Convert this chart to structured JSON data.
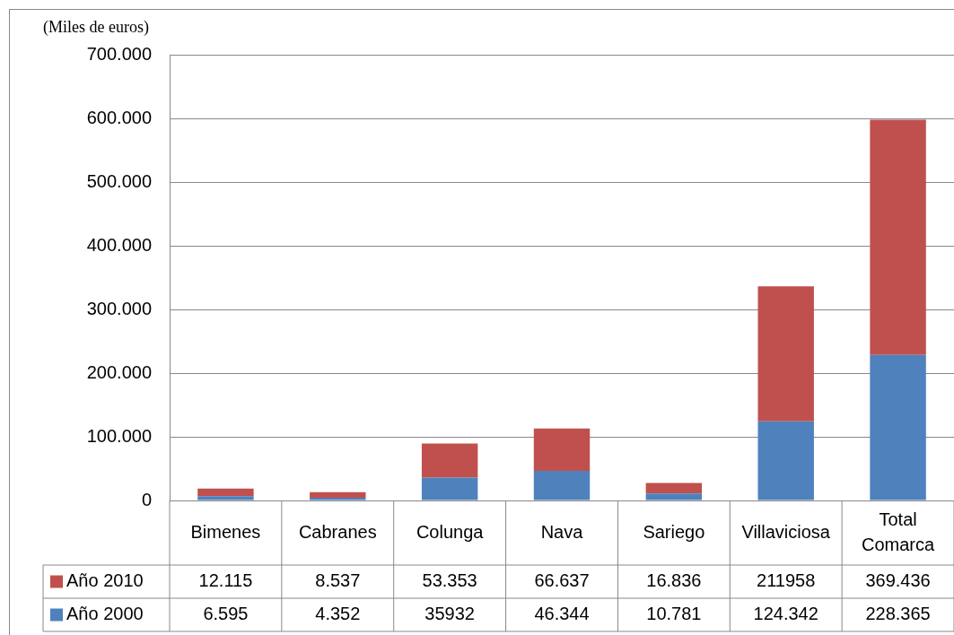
{
  "chart_data": {
    "type": "bar",
    "stacked": true,
    "ylabel": "(Miles de euros)",
    "categories": [
      "Bimenes",
      "Cabranes",
      "Colunga",
      "Nava",
      "Sariego",
      "Villaviciosa",
      "Total Comarca"
    ],
    "series": [
      {
        "name": "Año 2000",
        "color": "#4f81bd",
        "values": [
          6595,
          4352,
          35932,
          46344,
          10781,
          124342,
          228365
        ],
        "value_labels": [
          "6.595",
          "4.352",
          "35932",
          "46.344",
          "10.781",
          "124.342",
          "228.365"
        ]
      },
      {
        "name": "Año 2010",
        "color": "#c0504d",
        "values": [
          12115,
          8537,
          53353,
          66637,
          16836,
          211958,
          369436
        ],
        "value_labels": [
          "12.115",
          "8.537",
          "53.353",
          "66.637",
          "16.836",
          "211958",
          "369.436"
        ]
      }
    ],
    "ylim": [
      0,
      700000
    ],
    "yticks": [
      {
        "value": 0,
        "label": "0"
      },
      {
        "value": 100000,
        "label": "100.000"
      },
      {
        "value": 200000,
        "label": "200.000"
      },
      {
        "value": 300000,
        "label": "300.000"
      },
      {
        "value": 400000,
        "label": "400.000"
      },
      {
        "value": 500000,
        "label": "500.000"
      },
      {
        "value": 600000,
        "label": "600.000"
      },
      {
        "value": 700000,
        "label": "700.000"
      }
    ],
    "grid": "y",
    "legend": "bottom"
  }
}
